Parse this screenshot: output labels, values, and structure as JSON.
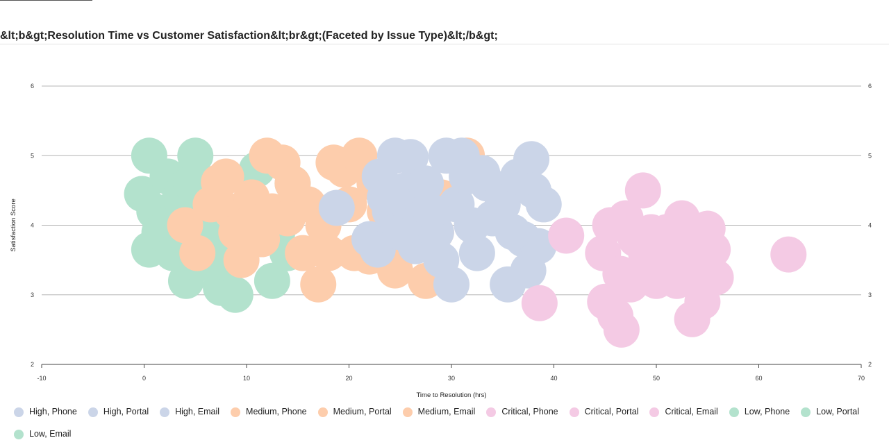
{
  "page": {
    "title": "&lt;b&gt;Resolution Time vs Customer Satisfaction&lt;br&gt;(Faceted by Issue Type)&lt;/b&gt;"
  },
  "chart_data": {
    "type": "scatter",
    "title": "&lt;b&gt;Resolution Time vs Customer Satisfaction&lt;br&gt;(Faceted by Issue Type)&lt;/b&gt;",
    "xlabel": "Time to Resolution (hrs)",
    "ylabel": "Satisfaction Score",
    "xlim": [
      -10,
      70
    ],
    "ylim": [
      2,
      6
    ],
    "x_ticks": [
      -10,
      0,
      10,
      20,
      30,
      40,
      50,
      60,
      70
    ],
    "y_ticks": [
      2,
      3,
      4,
      5,
      6
    ],
    "grid": "horizontal",
    "mirror_y_axis": true,
    "legend_position": "bottom",
    "colors": {
      "High": "#cbd5e8",
      "Medium": "#fdcdac",
      "Critical": "#f4cae4",
      "Low": "#b3e2cd"
    },
    "series": [
      {
        "name": "Low, Phone",
        "priority": "Low",
        "points": [
          [
            0.5,
            5.0
          ],
          [
            -0.2,
            4.45
          ],
          [
            1.0,
            4.2
          ],
          [
            2.3,
            4.7
          ],
          [
            3.0,
            4.1
          ],
          [
            0.5,
            3.65
          ],
          [
            1.5,
            3.9
          ],
          [
            2.8,
            3.6
          ],
          [
            3.5,
            4.4
          ],
          [
            4.0,
            4.55
          ]
        ]
      },
      {
        "name": "Low, Portal",
        "priority": "Low",
        "points": [
          [
            5.0,
            5.0
          ],
          [
            4.6,
            4.6
          ],
          [
            5.5,
            4.0
          ],
          [
            4.1,
            3.2
          ],
          [
            6.6,
            3.6
          ],
          [
            7.5,
            3.3
          ],
          [
            3.6,
            3.9
          ],
          [
            6.0,
            4.35
          ],
          [
            7.0,
            3.9
          ],
          [
            5.2,
            3.45
          ]
        ]
      },
      {
        "name": "Low, Email",
        "priority": "Low",
        "points": [
          [
            7.5,
            3.1
          ],
          [
            8.9,
            3.0
          ],
          [
            9.5,
            3.7
          ],
          [
            11.0,
            4.8
          ],
          [
            12.5,
            3.2
          ],
          [
            13.0,
            3.9
          ],
          [
            14.5,
            4.6
          ],
          [
            14.0,
            3.6
          ],
          [
            10.5,
            4.1
          ],
          [
            8.2,
            3.45
          ]
        ]
      },
      {
        "name": "Medium, Phone",
        "priority": "Medium",
        "points": [
          [
            4.0,
            4.0
          ],
          [
            5.2,
            3.6
          ],
          [
            7.3,
            4.62
          ],
          [
            8.5,
            4.2
          ],
          [
            9.5,
            3.5
          ],
          [
            10.5,
            4.4
          ],
          [
            11.5,
            3.8
          ],
          [
            12.5,
            4.2
          ],
          [
            6.5,
            4.3
          ],
          [
            9.0,
            3.9
          ],
          [
            8.0,
            4.7
          ],
          [
            10.0,
            4.0
          ]
        ]
      },
      {
        "name": "Medium, Portal",
        "priority": "Medium",
        "points": [
          [
            12.0,
            5.0
          ],
          [
            13.5,
            4.9
          ],
          [
            14.5,
            4.6
          ],
          [
            15.5,
            3.6
          ],
          [
            17.0,
            3.15
          ],
          [
            16.0,
            4.3
          ],
          [
            18.5,
            4.9
          ],
          [
            19.5,
            4.8
          ],
          [
            18.0,
            3.6
          ],
          [
            20.5,
            3.6
          ],
          [
            14.0,
            4.1
          ],
          [
            17.5,
            4.0
          ]
        ]
      },
      {
        "name": "Medium, Email",
        "priority": "Medium",
        "points": [
          [
            21.0,
            5.0
          ],
          [
            22.0,
            3.55
          ],
          [
            23.5,
            4.2
          ],
          [
            24.5,
            3.35
          ],
          [
            26.0,
            3.7
          ],
          [
            27.5,
            3.2
          ],
          [
            29.0,
            4.4
          ],
          [
            31.5,
            5.0
          ],
          [
            22.5,
            4.6
          ],
          [
            25.0,
            4.0
          ],
          [
            28.5,
            3.9
          ],
          [
            20.0,
            4.3
          ]
        ]
      },
      {
        "name": "High, Phone",
        "priority": "High",
        "points": [
          [
            18.8,
            4.25
          ],
          [
            22.0,
            3.8
          ],
          [
            22.8,
            3.65
          ],
          [
            23.0,
            4.7
          ],
          [
            24.5,
            5.0
          ],
          [
            24.0,
            4.2
          ],
          [
            25.5,
            4.5
          ],
          [
            26.0,
            4.98
          ],
          [
            25.0,
            3.9
          ],
          [
            23.5,
            4.4
          ],
          [
            27.0,
            4.1
          ],
          [
            26.5,
            3.7
          ]
        ]
      },
      {
        "name": "High, Portal",
        "priority": "High",
        "points": [
          [
            27.5,
            4.6
          ],
          [
            28.5,
            3.9
          ],
          [
            29.5,
            5.0
          ],
          [
            30.0,
            3.15
          ],
          [
            30.5,
            4.3
          ],
          [
            31.0,
            5.0
          ],
          [
            32.0,
            4.0
          ],
          [
            32.5,
            3.6
          ],
          [
            33.5,
            4.6
          ],
          [
            28.0,
            4.2
          ],
          [
            29.0,
            3.5
          ],
          [
            31.5,
            4.7
          ]
        ]
      },
      {
        "name": "High, Email",
        "priority": "High",
        "points": [
          [
            35.0,
            4.3
          ],
          [
            35.5,
            3.15
          ],
          [
            36.5,
            4.7
          ],
          [
            37.0,
            3.8
          ],
          [
            37.5,
            3.35
          ],
          [
            37.8,
            4.95
          ],
          [
            38.0,
            4.5
          ],
          [
            38.5,
            3.7
          ],
          [
            39.0,
            4.3
          ],
          [
            34.0,
            4.1
          ],
          [
            36.0,
            3.9
          ],
          [
            33.0,
            4.75
          ]
        ]
      },
      {
        "name": "Critical, Phone",
        "priority": "Critical",
        "points": [
          [
            38.6,
            2.88
          ],
          [
            41.2,
            3.85
          ],
          [
            44.8,
            3.6
          ],
          [
            45.0,
            2.9
          ],
          [
            45.5,
            4.0
          ],
          [
            46.5,
            3.3
          ],
          [
            47.0,
            4.1
          ],
          [
            48.0,
            3.8
          ]
        ]
      },
      {
        "name": "Critical, Portal",
        "priority": "Critical",
        "points": [
          [
            48.7,
            4.5
          ],
          [
            46.0,
            2.7
          ],
          [
            46.6,
            2.5
          ],
          [
            47.5,
            3.15
          ],
          [
            49.0,
            3.6
          ],
          [
            49.5,
            3.9
          ],
          [
            50.0,
            3.2
          ],
          [
            51.5,
            3.55
          ]
        ]
      },
      {
        "name": "Critical, Email",
        "priority": "Critical",
        "points": [
          [
            52.0,
            3.2
          ],
          [
            52.5,
            4.1
          ],
          [
            53.0,
            3.75
          ],
          [
            53.5,
            2.65
          ],
          [
            54.0,
            3.3
          ],
          [
            54.5,
            2.9
          ],
          [
            55.0,
            3.95
          ],
          [
            55.5,
            3.65
          ],
          [
            55.8,
            3.25
          ],
          [
            62.9,
            3.58
          ],
          [
            51.0,
            3.9
          ],
          [
            53.8,
            3.5
          ]
        ]
      }
    ]
  },
  "legend": {
    "items": [
      {
        "label": "High, Phone",
        "color": "#cbd5e8"
      },
      {
        "label": "High, Portal",
        "color": "#cbd5e8"
      },
      {
        "label": "High, Email",
        "color": "#cbd5e8"
      },
      {
        "label": "Medium, Phone",
        "color": "#fdcdac"
      },
      {
        "label": "Medium, Portal",
        "color": "#fdcdac"
      },
      {
        "label": "Medium, Email",
        "color": "#fdcdac"
      },
      {
        "label": "Critical, Phone",
        "color": "#f4cae4"
      },
      {
        "label": "Critical, Portal",
        "color": "#f4cae4"
      },
      {
        "label": "Critical, Email",
        "color": "#f4cae4"
      },
      {
        "label": "Low, Phone",
        "color": "#b3e2cd"
      },
      {
        "label": "Low, Portal",
        "color": "#b3e2cd"
      },
      {
        "label": "Low, Email",
        "color": "#b3e2cd"
      }
    ]
  }
}
